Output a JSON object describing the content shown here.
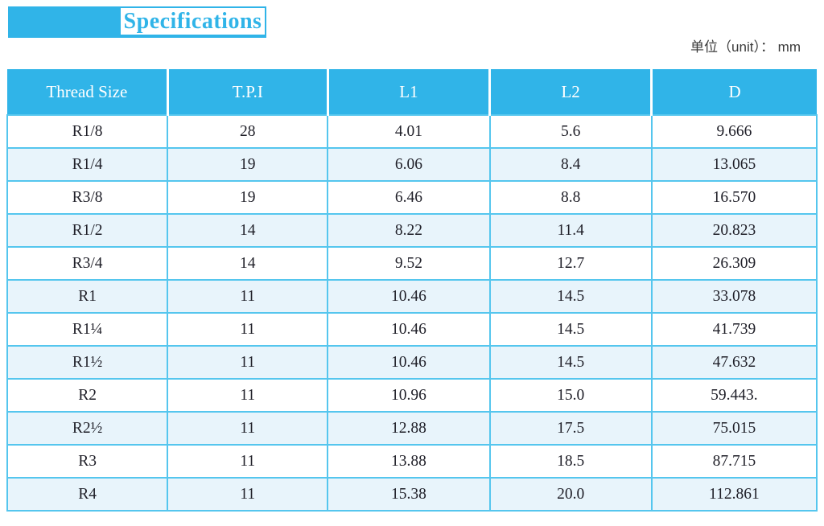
{
  "page": {
    "title": "Specifications",
    "unit_label": "单位（unit）： mm"
  },
  "table": {
    "columns": [
      "Thread Size",
      "T.P.I",
      "L1",
      "L2",
      "D"
    ],
    "rows": [
      [
        "R1/8",
        "28",
        "4.01",
        "5.6",
        "9.666"
      ],
      [
        "R1/4",
        "19",
        "6.06",
        "8.4",
        "13.065"
      ],
      [
        "R3/8",
        "19",
        "6.46",
        "8.8",
        "16.570"
      ],
      [
        "R1/2",
        "14",
        "8.22",
        "11.4",
        "20.823"
      ],
      [
        "R3/4",
        "14",
        "9.52",
        "12.7",
        "26.309"
      ],
      [
        "R1",
        "11",
        "10.46",
        "14.5",
        "33.078"
      ],
      [
        "R1¼",
        "11",
        "10.46",
        "14.5",
        "41.739"
      ],
      [
        "R1½",
        "11",
        "10.46",
        "14.5",
        "47.632"
      ],
      [
        "R2",
        "11",
        "10.96",
        "15.0",
        "59.443."
      ],
      [
        "R2½",
        "11",
        "12.88",
        "17.5",
        "75.015"
      ],
      [
        "R3",
        "11",
        "13.88",
        "18.5",
        "87.715"
      ],
      [
        "R4",
        "11",
        "15.38",
        "20.0",
        "112.861"
      ]
    ]
  },
  "colors": {
    "accent_blue": "#30b4e8",
    "row_alt_blue": "#e8f4fb",
    "border_blue": "#55c6ee",
    "table_text": "#1f1f28",
    "unit_text": "#3a3a3a"
  }
}
